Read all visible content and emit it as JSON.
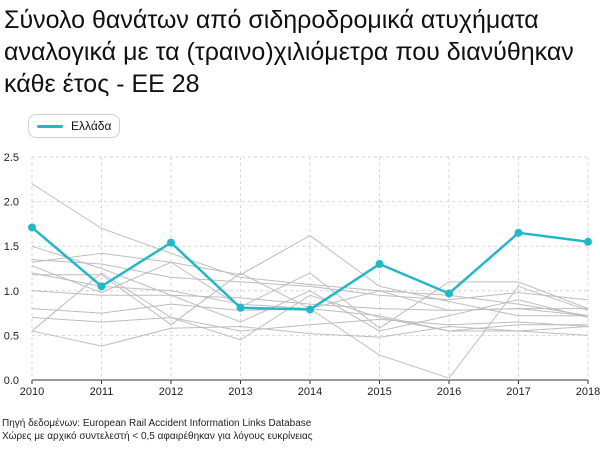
{
  "title": "Σύνολο θανάτων από σιδηροδρομικά ατυχήματα αναλογικά με τα (τραινο)χιλιόμετρα που διανύθηκαν κάθε έτος - ΕΕ 28",
  "footer": {
    "source": "Πηγή δεδομένων: European Rail Accident Information Links Database",
    "note": "Χώρες με αρχικό συντελεστή < 0,5 αφαιρέθηκαν για λόγους ευκρίνειας"
  },
  "chart_data": {
    "type": "line",
    "x": [
      "2010",
      "2011",
      "2012",
      "2013",
      "2014",
      "2015",
      "2016",
      "2017",
      "2018"
    ],
    "ylim": [
      0,
      2.5
    ],
    "yticks": [
      "0.0",
      "0.5",
      "1.0",
      "1.5",
      "2.0",
      "2.5"
    ],
    "grid": true,
    "legend_position": "top-left",
    "highlight_color": "#22b8c8",
    "background_color": "#bdbdbd",
    "series": [
      {
        "name": "Ελλάδα",
        "highlight": true,
        "values": [
          1.71,
          1.05,
          1.54,
          0.81,
          0.79,
          1.3,
          0.97,
          1.65,
          1.55
        ]
      },
      {
        "values": [
          2.2,
          1.7,
          1.42,
          1.15,
          1.07,
          1.0,
          0.95,
          0.85,
          0.72
        ]
      },
      {
        "values": [
          1.32,
          1.42,
          1.32,
          1.18,
          1.62,
          1.05,
          0.88,
          0.72,
          0.72
        ]
      },
      {
        "values": [
          1.28,
          0.98,
          1.32,
          0.82,
          1.2,
          0.58,
          1.1,
          1.1,
          0.8
        ]
      },
      {
        "values": [
          1.18,
          1.18,
          0.62,
          1.2,
          0.8,
          0.28,
          0.02,
          1.05,
          0.78
        ]
      },
      {
        "values": [
          1.2,
          1.05,
          1.0,
          0.85,
          0.8,
          1.0,
          0.78,
          0.8,
          0.8
        ]
      },
      {
        "values": [
          1.0,
          0.95,
          0.95,
          0.92,
          0.85,
          0.8,
          0.78,
          0.8,
          0.72
        ]
      },
      {
        "values": [
          0.8,
          0.75,
          0.85,
          0.78,
          0.8,
          0.72,
          0.55,
          0.62,
          0.62
        ]
      },
      {
        "values": [
          0.55,
          0.38,
          0.58,
          0.6,
          0.52,
          0.48,
          0.6,
          0.55,
          0.5
        ]
      },
      {
        "values": [
          1.5,
          1.25,
          0.95,
          0.65,
          1.0,
          0.55,
          0.72,
          0.9,
          0.7
        ]
      },
      {
        "values": [
          0.7,
          0.65,
          0.7,
          0.55,
          0.62,
          0.68,
          0.62,
          0.65,
          0.6
        ]
      },
      {
        "values": [
          0.55,
          1.2,
          0.7,
          0.45,
          0.95,
          0.7,
          0.55,
          0.55,
          0.6
        ]
      },
      {
        "values": [
          1.35,
          1.3,
          1.15,
          1.1,
          1.05,
          0.95,
          0.9,
          0.98,
          0.9
        ]
      }
    ]
  }
}
